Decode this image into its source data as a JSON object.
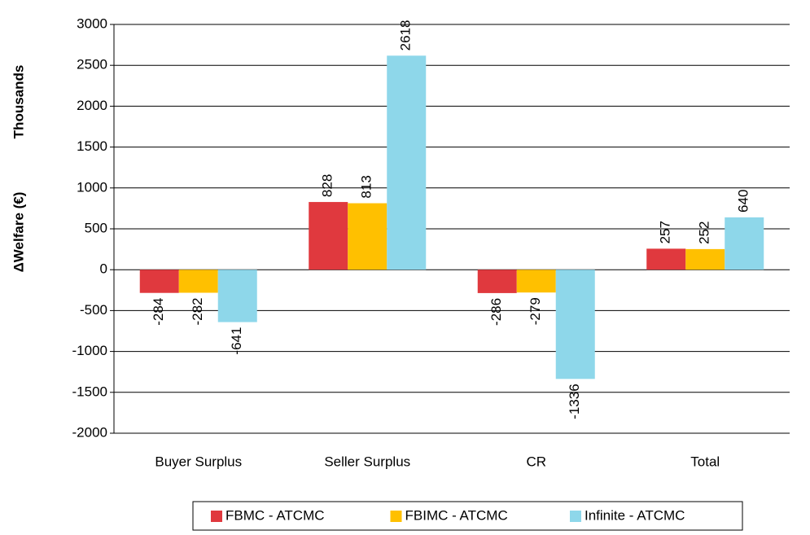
{
  "chart_data": {
    "type": "bar",
    "ylabel": "ΔWelfare (€)",
    "yunit": "Thousands",
    "categories": [
      "Buyer Surplus",
      "Seller Surplus",
      "CR",
      "Total"
    ],
    "series": [
      {
        "name": "FBMC - ATCMC",
        "color": "#e0393e",
        "values": [
          -284,
          828,
          -286,
          257
        ]
      },
      {
        "name": "FBIMC - ATCMC",
        "color": "#ffc000",
        "values": [
          -282,
          813,
          -279,
          252
        ]
      },
      {
        "name": "Infinite - ATCMC",
        "color": "#8ed7ea",
        "values": [
          -641,
          2618,
          -1336,
          640
        ]
      }
    ],
    "ylim": [
      -2000,
      3000
    ],
    "yticks": [
      -2000,
      -1500,
      -1000,
      -500,
      0,
      500,
      1000,
      1500,
      2000,
      2500,
      3000
    ],
    "grid": true,
    "legend": "bottom"
  }
}
